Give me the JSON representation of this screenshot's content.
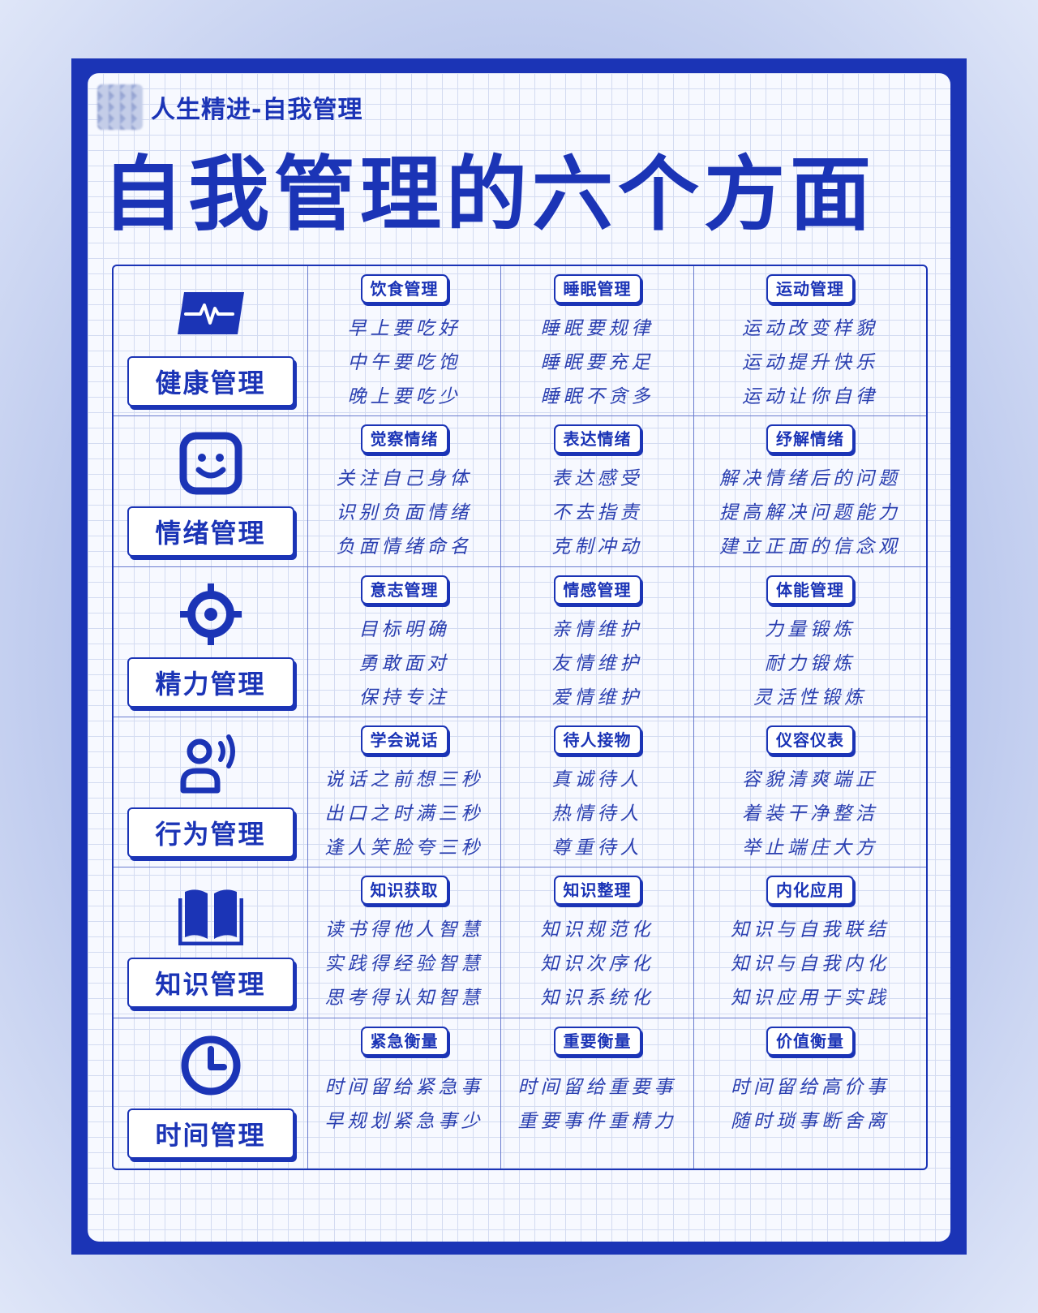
{
  "header": {
    "brand": "人生精进-自我管理"
  },
  "title": "自我管理的六个方面",
  "rows": [
    {
      "category": "健康管理",
      "icon": "pulse-monitor-icon",
      "columns": [
        {
          "tag": "饮食管理",
          "items": [
            "早上要吃好",
            "中午要吃饱",
            "晚上要吃少"
          ]
        },
        {
          "tag": "睡眠管理",
          "items": [
            "睡眠要规律",
            "睡眠要充足",
            "睡眠不贪多"
          ]
        },
        {
          "tag": "运动管理",
          "items": [
            "运动改变样貌",
            "运动提升快乐",
            "运动让你自律"
          ]
        }
      ]
    },
    {
      "category": "情绪管理",
      "icon": "smiley-face-icon",
      "columns": [
        {
          "tag": "觉察情绪",
          "items": [
            "关注自己身体",
            "识别负面情绪",
            "负面情绪命名"
          ]
        },
        {
          "tag": "表达情绪",
          "items": [
            "表达感受",
            "不去指责",
            "克制冲动"
          ]
        },
        {
          "tag": "纾解情绪",
          "items": [
            "解决情绪后的问题",
            "提高解决问题能力",
            "建立正面的信念观"
          ]
        }
      ]
    },
    {
      "category": "精力管理",
      "icon": "target-crosshair-icon",
      "columns": [
        {
          "tag": "意志管理",
          "items": [
            "目标明确",
            "勇敢面对",
            "保持专注"
          ]
        },
        {
          "tag": "情感管理",
          "items": [
            "亲情维护",
            "友情维护",
            "爱情维护"
          ]
        },
        {
          "tag": "体能管理",
          "items": [
            "力量锻炼",
            "耐力锻炼",
            "灵活性锻炼"
          ]
        }
      ]
    },
    {
      "category": "行为管理",
      "icon": "speaking-person-icon",
      "columns": [
        {
          "tag": "学会说话",
          "items": [
            "说话之前想三秒",
            "出口之时满三秒",
            "逢人笑脸夸三秒"
          ]
        },
        {
          "tag": "待人接物",
          "items": [
            "真诚待人",
            "热情待人",
            "尊重待人"
          ]
        },
        {
          "tag": "仪容仪表",
          "items": [
            "容貌清爽端正",
            "着装干净整洁",
            "举止端庄大方"
          ]
        }
      ]
    },
    {
      "category": "知识管理",
      "icon": "open-book-icon",
      "columns": [
        {
          "tag": "知识获取",
          "items": [
            "读书得他人智慧",
            "实践得经验智慧",
            "思考得认知智慧"
          ]
        },
        {
          "tag": "知识整理",
          "items": [
            "知识规范化",
            "知识次序化",
            "知识系统化"
          ]
        },
        {
          "tag": "内化应用",
          "items": [
            "知识与自我联结",
            "知识与自我内化",
            "知识应用于实践"
          ]
        }
      ]
    },
    {
      "category": "时间管理",
      "icon": "clock-icon",
      "columns": [
        {
          "tag": "紧急衡量",
          "items": [
            "时间留给紧急事",
            "早规划紧急事少"
          ]
        },
        {
          "tag": "重要衡量",
          "items": [
            "时间留给重要事",
            "重要事件重精力"
          ]
        },
        {
          "tag": "价值衡量",
          "items": [
            "时间留给高价事",
            "随时琐事断舍离"
          ]
        }
      ]
    }
  ],
  "colors": {
    "primary": "#1b34b6",
    "background": "#f7f9ff",
    "grid_line": "#d3dbf1"
  }
}
